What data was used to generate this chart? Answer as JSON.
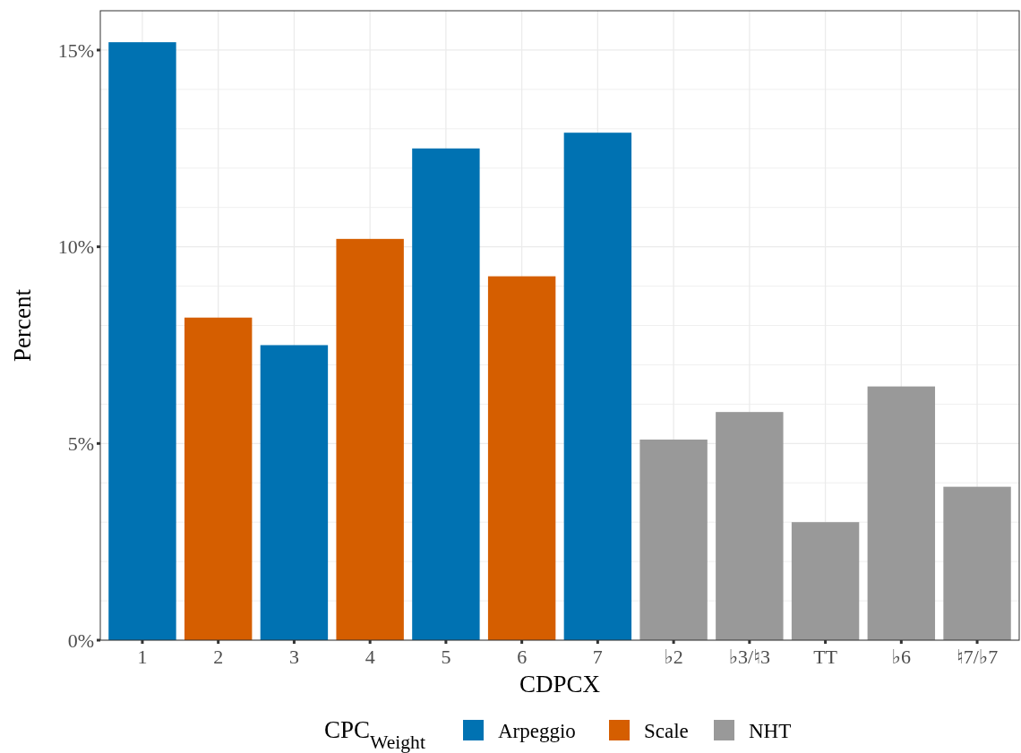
{
  "chart_data": {
    "type": "bar",
    "xlabel": "CDPCX",
    "ylabel": "Percent",
    "legend_title": "CPC$_{Weight}$",
    "legend": "bottom",
    "grid": true,
    "categories": [
      "1",
      "2",
      "3",
      "4",
      "5",
      "6",
      "7",
      "♭2",
      "♭3/♮3",
      "TT",
      "♭6",
      "♮7/♭7"
    ],
    "series": [
      {
        "name": "Arpeggio",
        "color": "#0072b2",
        "values": [
          15.2,
          null,
          7.5,
          null,
          12.5,
          null,
          12.9,
          null,
          null,
          null,
          null,
          null
        ]
      },
      {
        "name": "Scale",
        "color": "#d55e00",
        "values": [
          null,
          8.2,
          null,
          10.2,
          null,
          9.25,
          null,
          null,
          null,
          null,
          null,
          null
        ]
      },
      {
        "name": "NHT",
        "color": "#999999",
        "values": [
          null,
          null,
          null,
          null,
          null,
          null,
          null,
          5.1,
          5.8,
          3.0,
          6.45,
          3.9
        ]
      }
    ],
    "ylim": [
      0,
      16
    ],
    "yticks": [
      {
        "value": 0,
        "label": "0%"
      },
      {
        "value": 1,
        "label": null
      },
      {
        "value": 2,
        "label": null
      },
      {
        "value": 3,
        "label": null
      },
      {
        "value": 4,
        "label": null
      },
      {
        "value": 5,
        "label": "5%"
      },
      {
        "value": 6,
        "label": null
      },
      {
        "value": 7,
        "label": null
      },
      {
        "value": 8,
        "label": null
      },
      {
        "value": 9,
        "label": null
      },
      {
        "value": 10,
        "label": "10%"
      },
      {
        "value": 11,
        "label": null
      },
      {
        "value": 12,
        "label": null
      },
      {
        "value": 13,
        "label": null
      },
      {
        "value": 14,
        "label": null
      },
      {
        "value": 15,
        "label": "15%"
      }
    ]
  }
}
